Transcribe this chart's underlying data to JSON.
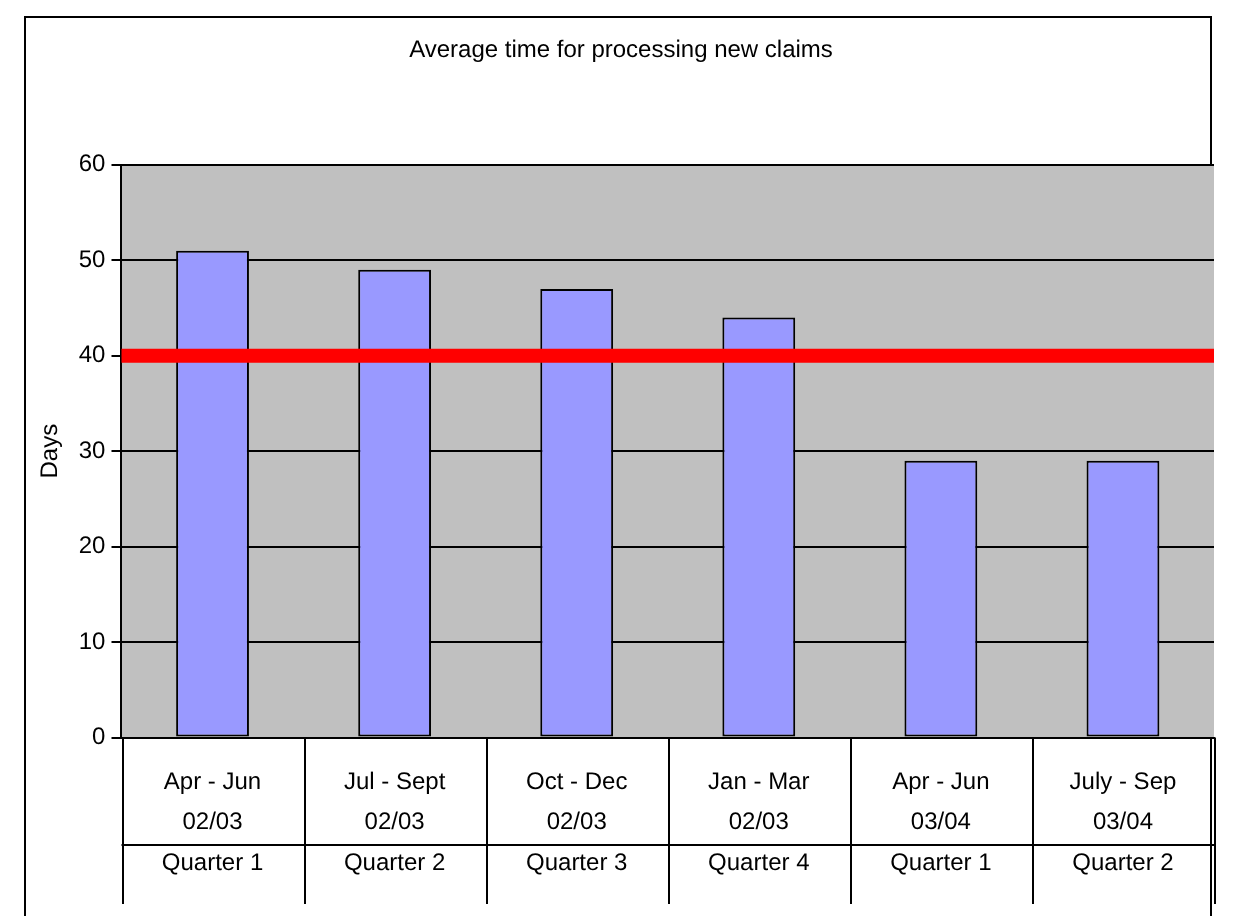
{
  "chart_data": {
    "type": "bar",
    "title": "Average time for processing new claims",
    "ylabel": "Days",
    "categories": [
      "Apr - Jun\n02/03\nQuarter 1",
      "Jul - Sept\n02/03\nQuarter 2",
      "Oct - Dec\n02/03\nQuarter 3",
      "Jan - Mar\n02/03\nQuarter 4",
      "Apr - Jun\n03/04\nQuarter 1",
      "July - Sep\n03/04\nQuarter 2"
    ],
    "values": [
      51,
      49,
      47,
      44,
      29,
      29
    ],
    "color": "#9999ff",
    "ylim": [
      0,
      60
    ],
    "yticks": [
      0,
      10,
      20,
      30,
      40,
      50,
      60
    ],
    "grid": "y",
    "ref_lines": [
      {
        "axis": "y",
        "value": 40,
        "color": "#ff0000"
      }
    ]
  }
}
